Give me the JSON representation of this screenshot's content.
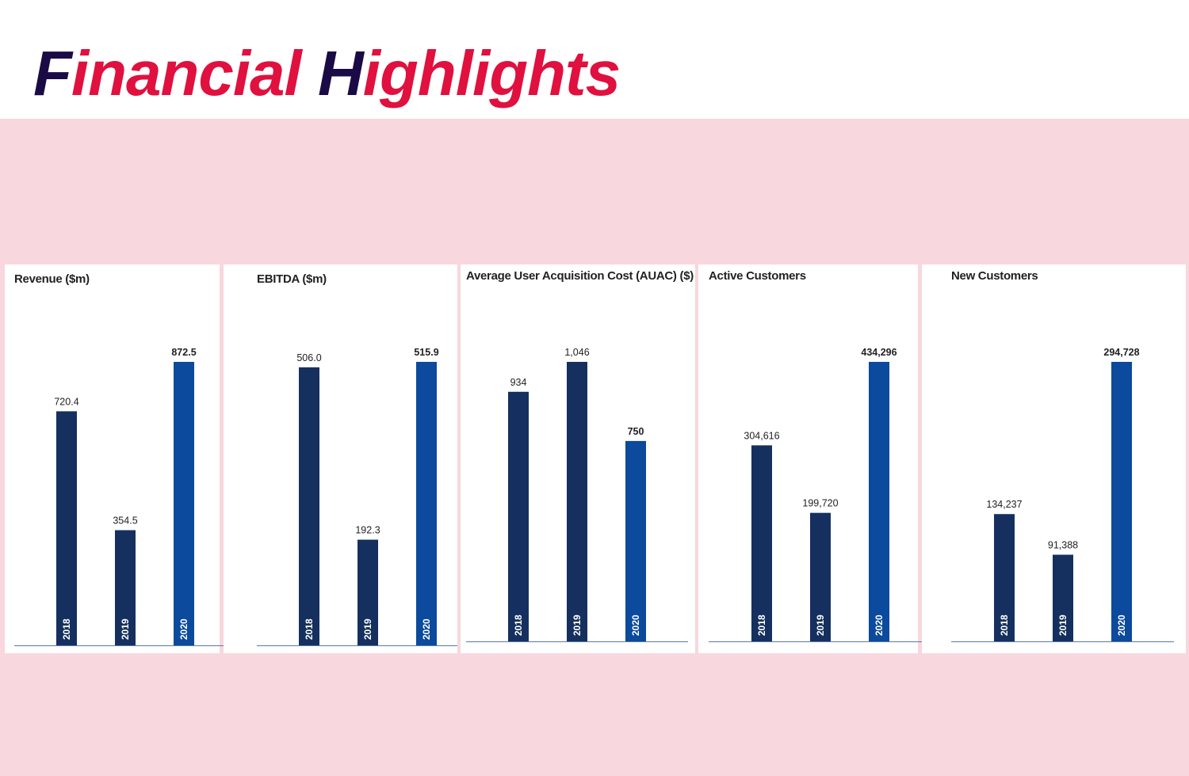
{
  "header": {
    "title": "Financial Highlights"
  },
  "chart_data": [
    {
      "type": "bar",
      "title": "Revenue ($m)",
      "categories": [
        "2018",
        "2019",
        "2020"
      ],
      "values": [
        720.4,
        354.5,
        872.5
      ],
      "colors": [
        "#15305f",
        "#15305f",
        "#0b4a9c"
      ]
    },
    {
      "type": "bar",
      "title": "EBITDA ($m)",
      "categories": [
        "2018",
        "2019",
        "2020"
      ],
      "values": [
        506.0,
        192.3,
        515.9
      ],
      "value_labels": [
        "506.0",
        "192.3",
        "515.9"
      ],
      "colors": [
        "#15305f",
        "#15305f",
        "#0b4a9c"
      ]
    },
    {
      "type": "bar",
      "title": "Average User Acquisition Cost (AUAC) ($)",
      "categories": [
        "2018",
        "2019",
        "2020"
      ],
      "values": [
        934,
        1046,
        750
      ],
      "value_labels": [
        "934",
        "1,046",
        "750"
      ],
      "colors": [
        "#15305f",
        "#15305f",
        "#0b4a9c"
      ]
    },
    {
      "type": "bar",
      "title": "Active Customers",
      "categories": [
        "2018",
        "2019",
        "2020"
      ],
      "values": [
        304616,
        199720,
        434296
      ],
      "value_labels": [
        "304,616",
        "199,720",
        "434,296"
      ],
      "colors": [
        "#15305f",
        "#15305f",
        "#0b4a9c"
      ]
    },
    {
      "type": "bar",
      "title": "New Customers",
      "categories": [
        "2018",
        "2019",
        "2020"
      ],
      "values": [
        134237,
        91388,
        294728
      ],
      "value_labels": [
        "134,237",
        "91,388",
        "294,728"
      ],
      "colors": [
        "#15305f",
        "#15305f",
        "#0b4a9c"
      ]
    }
  ]
}
